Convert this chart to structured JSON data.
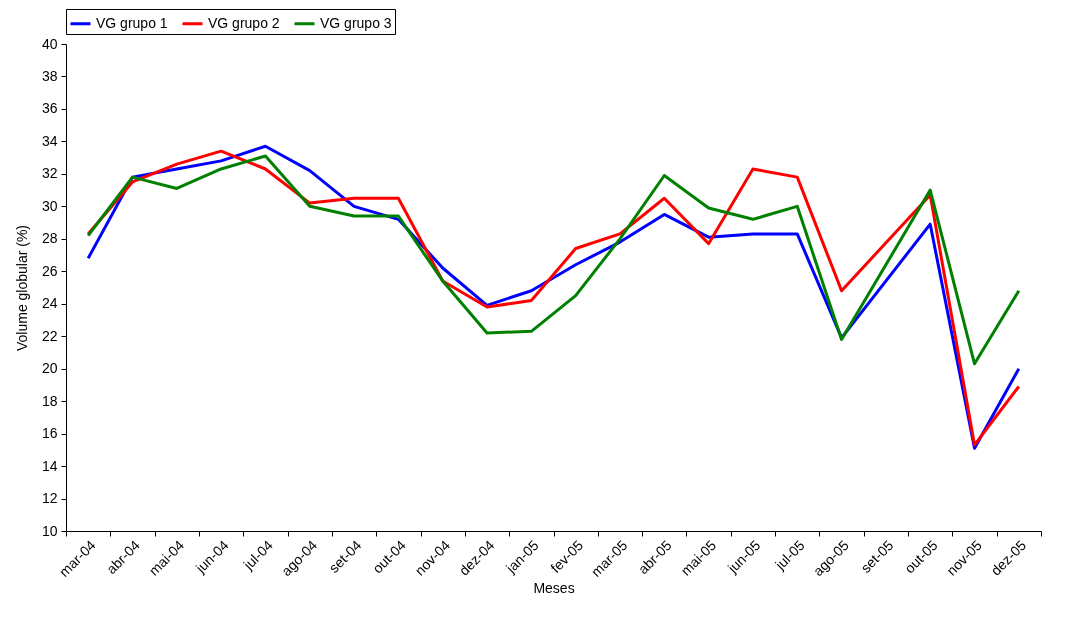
{
  "chart_data": {
    "type": "line",
    "xlabel": "Meses",
    "ylabel": "Volume globular (%)",
    "categories": [
      "mar-04",
      "abr-04",
      "mai-04",
      "jun-04",
      "jul-04",
      "ago-04",
      "set-04",
      "out-04",
      "nov-04",
      "dez-04",
      "jan-05",
      "fev-05",
      "mar-05",
      "abr-05",
      "mai-05",
      "jun-05",
      "jul-05",
      "ago-05",
      "set-05",
      "out-05",
      "nov-05",
      "dez-05"
    ],
    "series": [
      {
        "name": "VG grupo 1",
        "color": "#0000ff",
        "values": [
          26.8,
          31.8,
          32.3,
          32.8,
          33.7,
          32.2,
          30.0,
          29.2,
          26.2,
          23.9,
          24.8,
          26.4,
          27.8,
          29.5,
          28.1,
          28.3,
          28.3,
          21.9,
          null,
          28.9,
          15.1,
          20.0
        ]
      },
      {
        "name": "VG grupo 2",
        "color": "#ff0000",
        "values": [
          28.3,
          31.5,
          32.6,
          33.4,
          32.3,
          30.2,
          30.5,
          30.5,
          25.4,
          23.8,
          24.2,
          27.4,
          28.3,
          30.5,
          27.7,
          32.3,
          31.8,
          24.8,
          null,
          30.7,
          15.3,
          18.9
        ]
      },
      {
        "name": "VG grupo 3",
        "color": "#008000",
        "values": [
          28.2,
          31.8,
          31.1,
          32.3,
          33.1,
          30.0,
          29.4,
          29.4,
          25.4,
          22.2,
          22.3,
          24.5,
          28.0,
          31.9,
          29.9,
          29.2,
          30.0,
          21.8,
          null,
          31.0,
          20.3,
          24.8
        ]
      }
    ],
    "ylim": [
      10,
      40
    ],
    "yticks": [
      10,
      12,
      14,
      16,
      18,
      20,
      22,
      24,
      26,
      28,
      30,
      32,
      34,
      36,
      38,
      40
    ],
    "legend": "top",
    "grid": false,
    "marker": "none",
    "line_style": "solid"
  }
}
